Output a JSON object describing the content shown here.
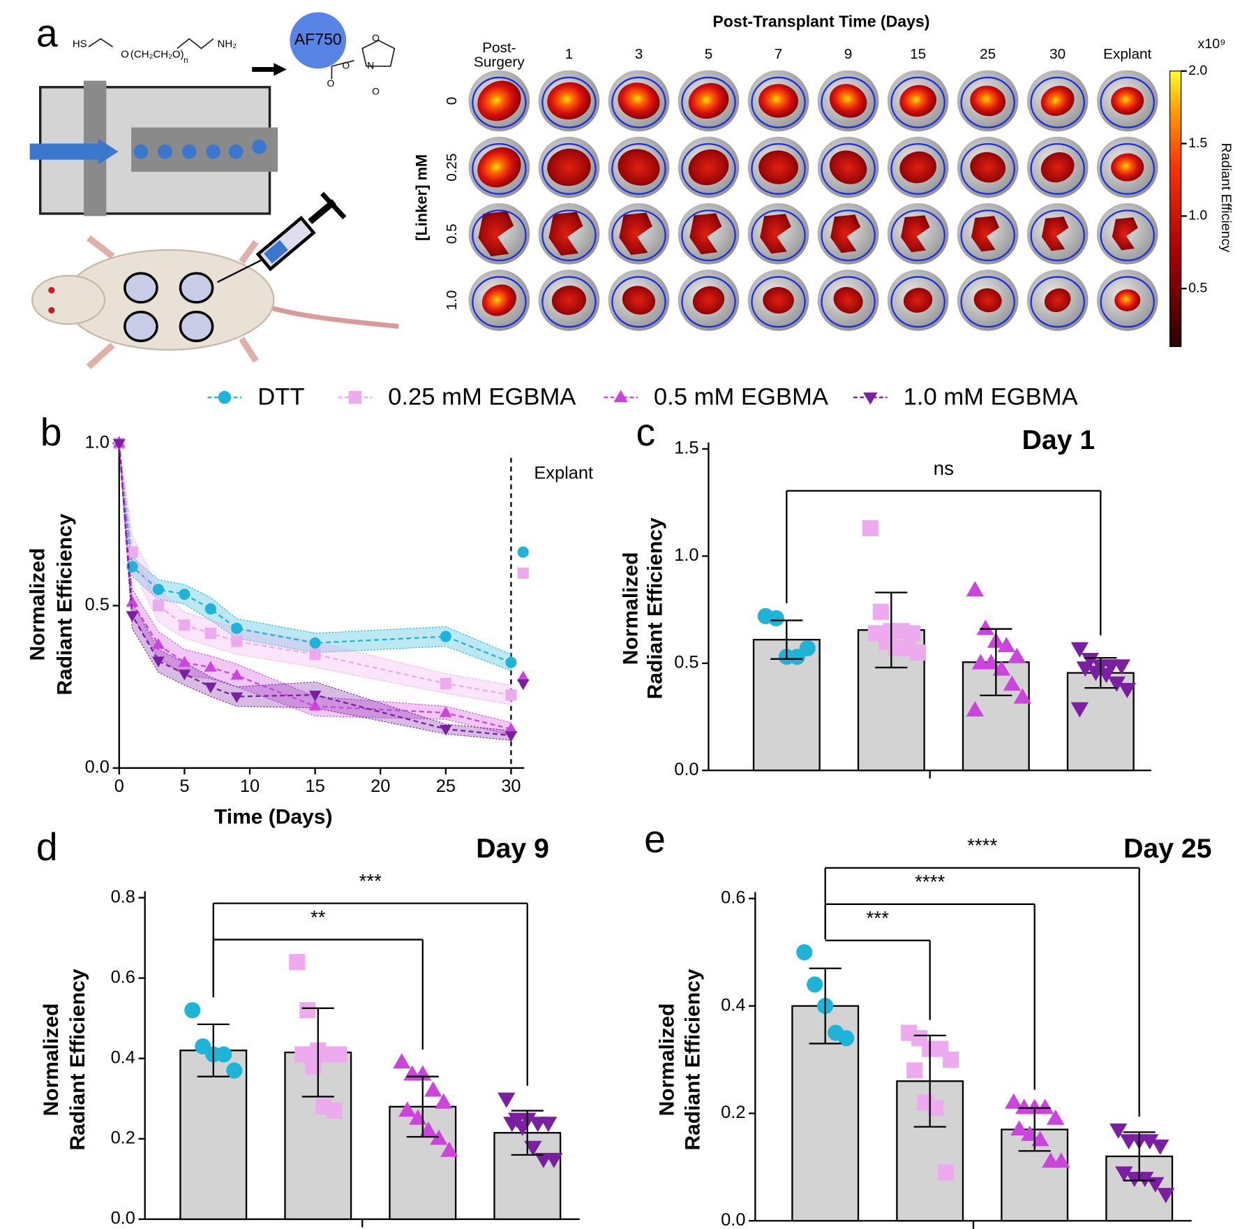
{
  "panel_a": {
    "letter": "a",
    "chem": [
      "HS",
      "O",
      "(CH₂CH₂O)",
      "n",
      "NH₂"
    ],
    "dye": "AF750",
    "nhs": [
      "O",
      "O",
      "N",
      "O",
      "O"
    ],
    "title": "Post-Transplant Time (Days)",
    "columns": [
      [
        "Post-",
        "Surgery"
      ],
      "1",
      "3",
      "5",
      "7",
      "9",
      "15",
      "25",
      "30",
      "Explant"
    ],
    "row_label": "[Linker] mM",
    "rows": [
      "0",
      "0.25",
      "0.5",
      "1.0"
    ],
    "colorbar": {
      "label": "Radiant Efficiency",
      "exponent": "x10⁹",
      "ylim": [
        0.1,
        2.0
      ],
      "ticks": [
        {
          "value": 2.0,
          "label": "2.0"
        },
        {
          "value": 1.5,
          "label": "1.5"
        },
        {
          "value": 1.0,
          "label": "1.0"
        },
        {
          "value": 0.5,
          "label": "0.5"
        }
      ]
    }
  },
  "chart_data": [
    {
      "type": "line",
      "panel": "b",
      "xlabel": "Time (Days)",
      "ylabel": [
        "Normalized",
        "Radiant Efficiency"
      ],
      "x": [
        0,
        1,
        3,
        5,
        7,
        9,
        15,
        25,
        30
      ],
      "xlim": [
        0,
        31
      ],
      "xticks": [
        0,
        5,
        10,
        15,
        20,
        25,
        30
      ],
      "ylim": [
        0,
        1
      ],
      "yticks": [
        {
          "value": 0,
          "label": "0.0"
        },
        {
          "value": 0.5,
          "label": "0.5"
        },
        {
          "value": 1,
          "label": "1.0"
        }
      ],
      "explant": {
        "x": 30,
        "label": "Explant"
      },
      "series": [
        {
          "name": "DTT",
          "color": "#1db4d8",
          "marker": "circle",
          "values": [
            1.0,
            0.62,
            0.55,
            0.535,
            0.49,
            0.43,
            0.385,
            0.405,
            0.325
          ],
          "errors": [
            0,
            0.03,
            0.03,
            0.03,
            0.035,
            0.03,
            0.03,
            0.03,
            0.025
          ],
          "explant": 0.665
        },
        {
          "name": "0.25 mM EGBMA",
          "color": "#eeaaee",
          "marker": "square",
          "values": [
            1.0,
            0.665,
            0.5,
            0.44,
            0.415,
            0.39,
            0.35,
            0.26,
            0.225
          ],
          "errors": [
            0,
            0.05,
            0.05,
            0.04,
            0.04,
            0.04,
            0.04,
            0.03,
            0.03
          ],
          "explant": 0.6
        },
        {
          "name": "0.5 mM EGBMA",
          "color": "#cc44dd",
          "marker": "triangle-up",
          "values": [
            1.0,
            0.51,
            0.38,
            0.325,
            0.31,
            0.285,
            0.19,
            0.17,
            0.12
          ],
          "errors": [
            0,
            0.04,
            0.04,
            0.04,
            0.035,
            0.035,
            0.03,
            0.02,
            0.02
          ],
          "explant": 0.28
        },
        {
          "name": "1.0 mM EGBMA",
          "color": "#7b1fa2",
          "marker": "triangle-down",
          "values": [
            1.0,
            0.47,
            0.33,
            0.29,
            0.25,
            0.22,
            0.225,
            0.12,
            0.1
          ],
          "errors": [
            0,
            0.04,
            0.035,
            0.035,
            0.03,
            0.03,
            0.04,
            0.015,
            0.015
          ],
          "explant": 0.26
        }
      ]
    },
    {
      "type": "bar",
      "panel": "c",
      "title": "Day 1",
      "ylabel": [
        "Normalized",
        "Radiant Efficiency"
      ],
      "ylim": [
        0,
        1.5
      ],
      "yticks": [
        {
          "value": 0,
          "label": "0.0"
        },
        {
          "value": 0.5,
          "label": "0.5"
        },
        {
          "value": 1,
          "label": "1.0"
        },
        {
          "value": 1.5,
          "label": "1.5"
        }
      ],
      "series": [
        {
          "color": "#1db4d8",
          "marker": "circle",
          "mean": 0.61,
          "sd": 0.09,
          "points": [
            0.72,
            0.71,
            0.53,
            0.53,
            0.57
          ]
        },
        {
          "color": "#eeaaee",
          "marker": "square",
          "mean": 0.655,
          "sd": 0.175,
          "points": [
            1.13,
            0.74,
            0.65,
            0.65,
            0.64,
            0.64,
            0.6,
            0.57,
            0.57,
            0.55
          ]
        },
        {
          "color": "#cc44dd",
          "marker": "triangle-up",
          "mean": 0.505,
          "sd": 0.155,
          "points": [
            0.84,
            0.66,
            0.6,
            0.58,
            0.53,
            0.5,
            0.5,
            0.47,
            0.4,
            0.34,
            0.28
          ]
        },
        {
          "color": "#7b1fa2",
          "marker": "triangle-down",
          "mean": 0.455,
          "sd": 0.07,
          "points": [
            0.57,
            0.52,
            0.49,
            0.49,
            0.49,
            0.48,
            0.46,
            0.45,
            0.41,
            0.38,
            0.29
          ]
        }
      ],
      "comparisons": [
        {
          "label": "ns",
          "between": [
            0,
            3
          ]
        }
      ]
    },
    {
      "type": "bar",
      "panel": "d",
      "title": "Day 9",
      "ylabel": [
        "Normalized",
        "Radiant Efficiency"
      ],
      "ylim": [
        0,
        0.8
      ],
      "yticks": [
        {
          "value": 0,
          "label": "0.0"
        },
        {
          "value": 0.2,
          "label": "0.2"
        },
        {
          "value": 0.4,
          "label": "0.4"
        },
        {
          "value": 0.6,
          "label": "0.6"
        },
        {
          "value": 0.8,
          "label": "0.8"
        }
      ],
      "series": [
        {
          "color": "#1db4d8",
          "marker": "circle",
          "mean": 0.42,
          "sd": 0.065,
          "points": [
            0.52,
            0.43,
            0.41,
            0.41,
            0.37
          ]
        },
        {
          "color": "#eeaaee",
          "marker": "square",
          "mean": 0.415,
          "sd": 0.11,
          "points": [
            0.64,
            0.52,
            0.42,
            0.41,
            0.41,
            0.41,
            0.38,
            0.28,
            0.27
          ]
        },
        {
          "color": "#cc44dd",
          "marker": "triangle-up",
          "mean": 0.28,
          "sd": 0.075,
          "points": [
            0.39,
            0.36,
            0.36,
            0.32,
            0.29,
            0.27,
            0.25,
            0.22,
            0.2,
            0.17
          ]
        },
        {
          "color": "#7b1fa2",
          "marker": "triangle-down",
          "mean": 0.215,
          "sd": 0.055,
          "points": [
            0.3,
            0.25,
            0.25,
            0.24,
            0.24,
            0.24,
            0.23,
            0.18,
            0.15,
            0.15
          ]
        }
      ],
      "comparisons": [
        {
          "label": "**",
          "between": [
            0,
            2
          ]
        },
        {
          "label": "***",
          "between": [
            0,
            3
          ]
        }
      ]
    },
    {
      "type": "bar",
      "panel": "e",
      "title": "Day 25",
      "ylabel": [
        "Normalized",
        "Radiant Efficiency"
      ],
      "ylim": [
        0,
        0.6
      ],
      "yticks": [
        {
          "value": 0,
          "label": "0.0"
        },
        {
          "value": 0.2,
          "label": "0.2"
        },
        {
          "value": 0.4,
          "label": "0.4"
        },
        {
          "value": 0.6,
          "label": "0.6"
        }
      ],
      "series": [
        {
          "color": "#1db4d8",
          "marker": "circle",
          "mean": 0.4,
          "sd": 0.07,
          "points": [
            0.5,
            0.44,
            0.4,
            0.35,
            0.34
          ]
        },
        {
          "color": "#eeaaee",
          "marker": "square",
          "mean": 0.26,
          "sd": 0.085,
          "points": [
            0.35,
            0.34,
            0.32,
            0.32,
            0.3,
            0.28,
            0.22,
            0.21,
            0.09
          ]
        },
        {
          "color": "#cc44dd",
          "marker": "triangle-up",
          "mean": 0.17,
          "sd": 0.04,
          "points": [
            0.22,
            0.21,
            0.21,
            0.21,
            0.19,
            0.17,
            0.16,
            0.15,
            0.11,
            0.11
          ]
        },
        {
          "color": "#7b1fa2",
          "marker": "triangle-down",
          "mean": 0.12,
          "sd": 0.045,
          "points": [
            0.17,
            0.15,
            0.15,
            0.15,
            0.14,
            0.09,
            0.08,
            0.08,
            0.07,
            0.05
          ]
        }
      ],
      "comparisons": [
        {
          "label": "***",
          "between": [
            0,
            1
          ]
        },
        {
          "label": "****",
          "between": [
            0,
            2
          ]
        },
        {
          "label": "****",
          "between": [
            0,
            3
          ]
        }
      ]
    }
  ]
}
